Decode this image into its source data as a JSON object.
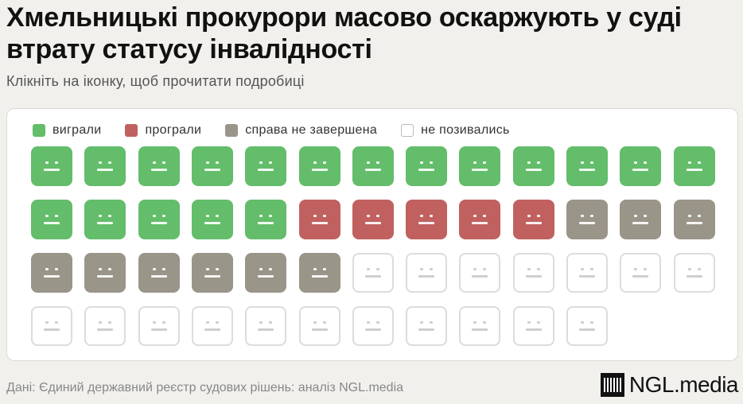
{
  "title": "Хмельницькі прокурори масово оскаржують у суді втрату статусу інвалідності",
  "subtitle": "Клікніть на іконку, щоб прочитати подробиці",
  "colors": {
    "won": "#63bd6a",
    "lost": "#c06160",
    "pending": "#9a9589",
    "not_sued": "#ffffff"
  },
  "legend": [
    {
      "key": "won",
      "label": "виграли",
      "color": "#63bd6a"
    },
    {
      "key": "lost",
      "label": "програли",
      "color": "#c06160"
    },
    {
      "key": "pending",
      "label": "справа не завершена",
      "color": "#9a9589"
    },
    {
      "key": "not_sued",
      "label": "не позивались",
      "color": "#ffffff"
    }
  ],
  "chart_data": {
    "type": "waffle",
    "unit": "прокурор",
    "columns": 13,
    "categories": [
      "виграли",
      "програли",
      "справа не завершена",
      "не позивались"
    ],
    "values": [
      18,
      5,
      9,
      18
    ],
    "total": 50,
    "icon": "neutral-face-icon"
  },
  "footer": {
    "source": "Дані: Єдиний державний реєстр судових рішень: аналіз NGL.media",
    "brand": "NGL.media"
  }
}
